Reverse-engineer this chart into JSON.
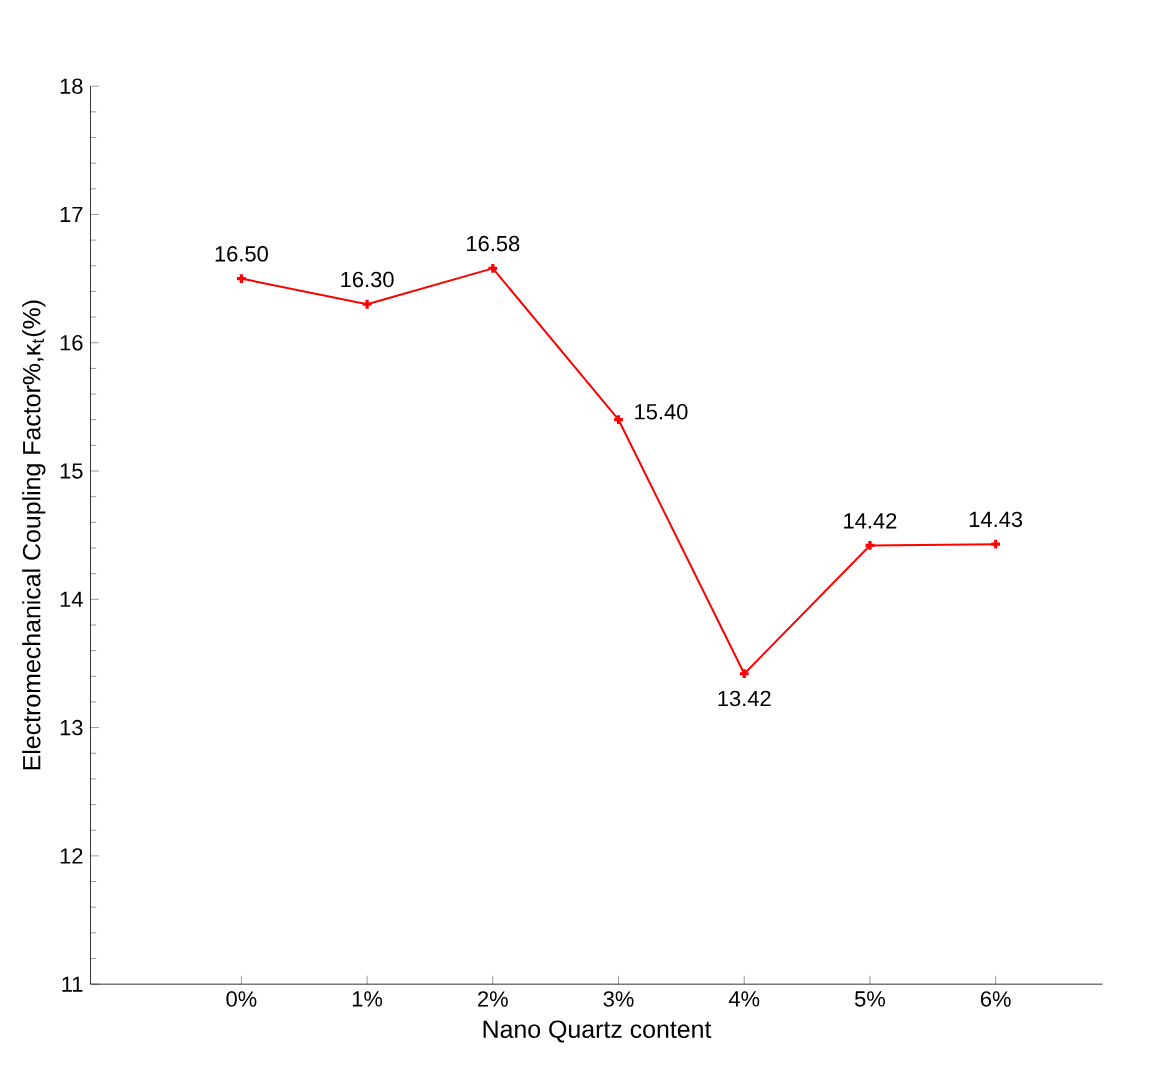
{
  "chart_data": {
    "type": "line",
    "xlabel": "Nano Quartz content",
    "ylabel": "Electromechanical Coupling Factor%,κ$_{t}$(%)",
    "categories": [
      "0%",
      "1%",
      "2%",
      "3%",
      "4%",
      "5%",
      "6%"
    ],
    "series": [
      {
        "color": "#ff0000",
        "values": [
          16.5,
          16.3,
          16.58,
          15.4,
          13.42,
          14.42,
          14.43
        ],
        "value_labels": [
          "16.50",
          "16.30",
          "16.58",
          "15.40",
          "13.42",
          "14.42",
          "14.43"
        ]
      }
    ],
    "ylim": [
      11,
      18
    ],
    "yticks": [
      11,
      12,
      13,
      14,
      15,
      16,
      17,
      18
    ],
    "marker": "cross",
    "line_style": "solid"
  }
}
